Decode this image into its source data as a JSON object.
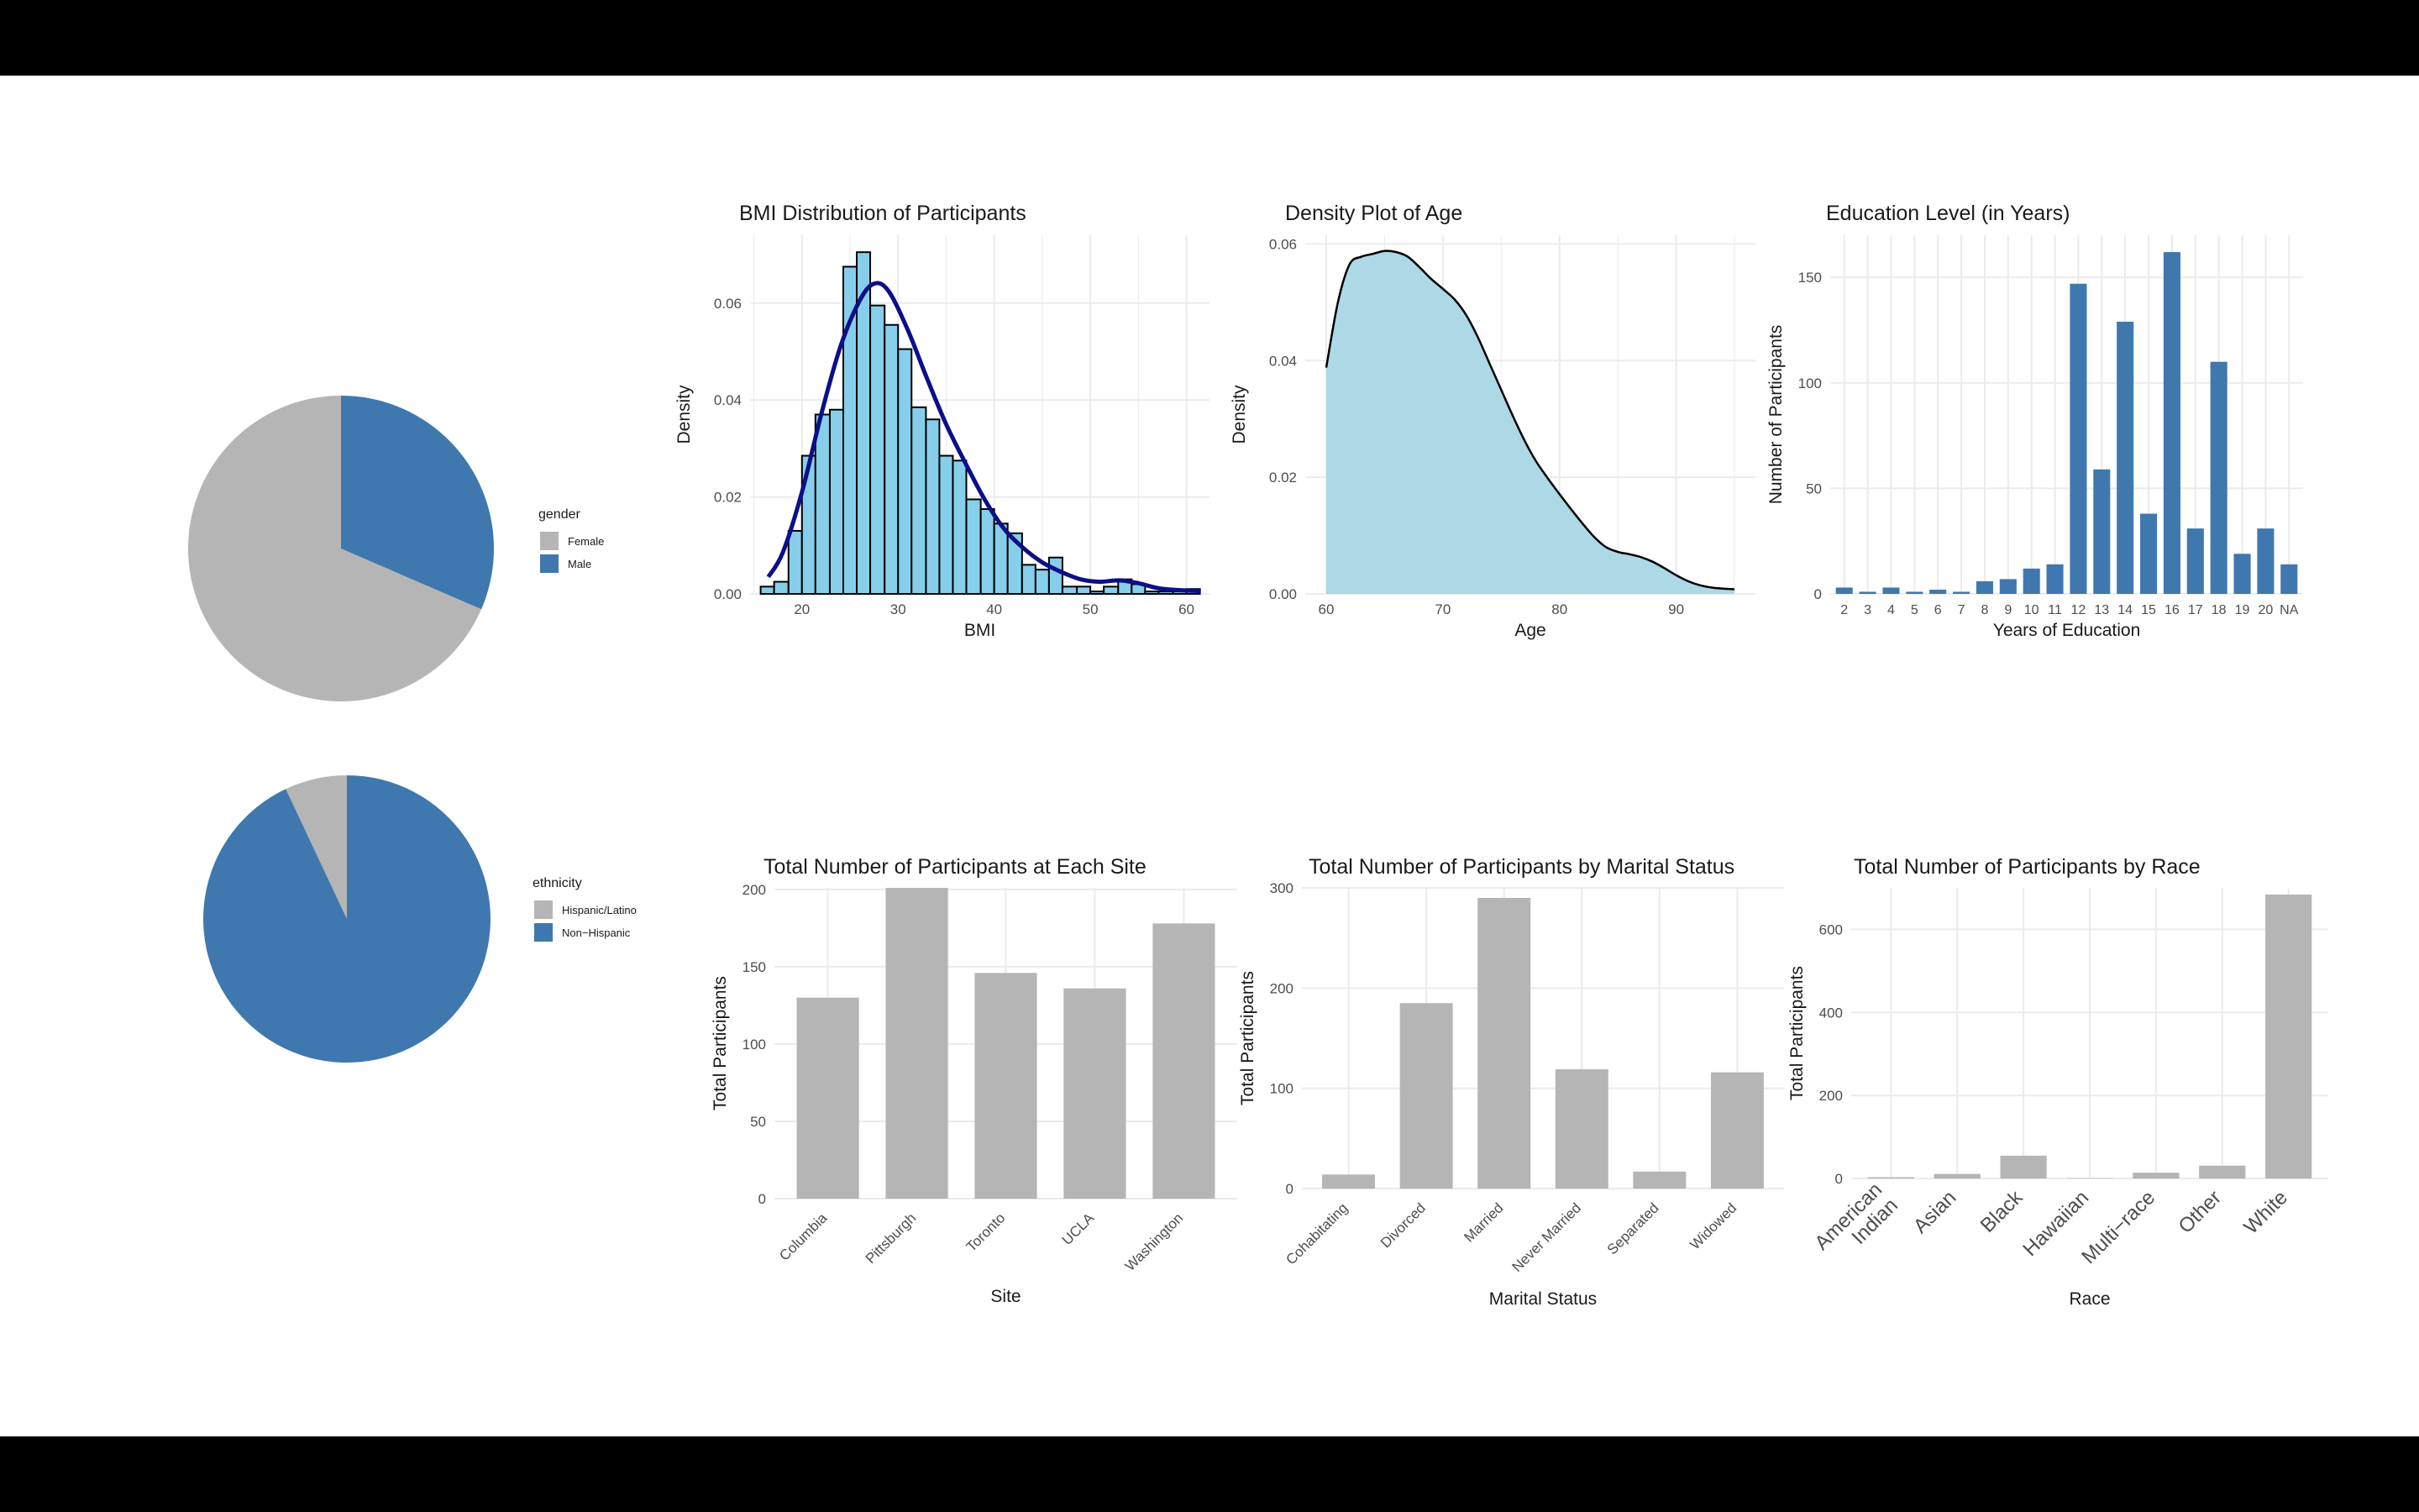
{
  "colors": {
    "grey": "#b5b5b5",
    "blue": "#3f78ae",
    "lightblue": "#87ceeb",
    "density_fill": "#add8e6",
    "navy": "#0b0f88",
    "grid": "#ebebeb",
    "text": "#1a1a1a",
    "tick": "#4d4d4d"
  },
  "chart_data": [
    {
      "id": "gender",
      "type": "pie",
      "legend_title": "gender",
      "legend_position": "right",
      "slices": [
        {
          "label": "Female",
          "value": 68.5,
          "color": "#b5b5b5"
        },
        {
          "label": "Male",
          "value": 31.5,
          "color": "#3f78ae"
        }
      ]
    },
    {
      "id": "ethnicity",
      "type": "pie",
      "legend_title": "ethnicity",
      "legend_position": "right",
      "slices": [
        {
          "label": "Hispanic/Latino",
          "value": 7,
          "color": "#b5b5b5"
        },
        {
          "label": "Non−Hispanic",
          "value": 93,
          "color": "#3f78ae"
        }
      ]
    },
    {
      "id": "bmi",
      "type": "bar",
      "subtype": "histogram",
      "title": "BMI Distribution of Participants",
      "xlabel": "BMI",
      "ylabel": "Density",
      "xlim": [
        14.6,
        62.4
      ],
      "ylim": [
        0,
        0.074
      ],
      "xticks": [
        20,
        30,
        40,
        50,
        60
      ],
      "yticks": [
        0,
        0.02,
        0.04,
        0.06
      ],
      "ytick_labels": [
        "0.00",
        "0.02",
        "0.04",
        "0.06"
      ],
      "grid": true,
      "bins": [
        {
          "x0": 15.7,
          "x1": 17.1,
          "value": 0.0015
        },
        {
          "x0": 17.1,
          "x1": 18.6,
          "value": 0.0025
        },
        {
          "x0": 18.6,
          "x1": 20.0,
          "value": 0.013
        },
        {
          "x0": 20.0,
          "x1": 21.4,
          "value": 0.0285
        },
        {
          "x0": 21.4,
          "x1": 22.9,
          "value": 0.037
        },
        {
          "x0": 22.9,
          "x1": 24.3,
          "value": 0.038
        },
        {
          "x0": 24.3,
          "x1": 25.7,
          "value": 0.0675
        },
        {
          "x0": 25.7,
          "x1": 27.1,
          "value": 0.0705
        },
        {
          "x0": 27.1,
          "x1": 28.6,
          "value": 0.0595
        },
        {
          "x0": 28.6,
          "x1": 30.0,
          "value": 0.0555
        },
        {
          "x0": 30.0,
          "x1": 31.4,
          "value": 0.0505
        },
        {
          "x0": 31.4,
          "x1": 32.9,
          "value": 0.0385
        },
        {
          "x0": 32.9,
          "x1": 34.3,
          "value": 0.036
        },
        {
          "x0": 34.3,
          "x1": 35.7,
          "value": 0.0285
        },
        {
          "x0": 35.7,
          "x1": 37.1,
          "value": 0.0275
        },
        {
          "x0": 37.1,
          "x1": 38.6,
          "value": 0.0195
        },
        {
          "x0": 38.6,
          "x1": 40.0,
          "value": 0.0175
        },
        {
          "x0": 40.0,
          "x1": 41.4,
          "value": 0.0145
        },
        {
          "x0": 41.4,
          "x1": 42.9,
          "value": 0.0125
        },
        {
          "x0": 42.9,
          "x1": 44.3,
          "value": 0.006
        },
        {
          "x0": 44.3,
          "x1": 45.7,
          "value": 0.005
        },
        {
          "x0": 45.7,
          "x1": 47.1,
          "value": 0.0075
        },
        {
          "x0": 47.1,
          "x1": 48.6,
          "value": 0.0015
        },
        {
          "x0": 48.6,
          "x1": 50.0,
          "value": 0.0015
        },
        {
          "x0": 50.0,
          "x1": 51.4,
          "value": 0.0005
        },
        {
          "x0": 51.4,
          "x1": 52.9,
          "value": 0.0015
        },
        {
          "x0": 52.9,
          "x1": 54.3,
          "value": 0.003
        },
        {
          "x0": 54.3,
          "x1": 55.7,
          "value": 0.002
        },
        {
          "x0": 55.7,
          "x1": 57.1,
          "value": 0.0005
        },
        {
          "x0": 57.1,
          "x1": 58.6,
          "value": 0.0005
        },
        {
          "x0": 58.6,
          "x1": 60.0,
          "value": 0.0005
        },
        {
          "x0": 60.0,
          "x1": 61.4,
          "value": 0.001
        }
      ],
      "density_line": {
        "x": [
          16.5,
          18,
          20,
          22,
          24,
          26,
          27.5,
          29,
          31,
          33,
          35,
          37,
          39,
          41,
          43,
          45,
          47,
          49,
          51,
          53,
          55,
          57,
          59,
          61.5
        ],
        "y": [
          0.0035,
          0.0085,
          0.021,
          0.037,
          0.051,
          0.0605,
          0.064,
          0.0625,
          0.0545,
          0.0445,
          0.035,
          0.027,
          0.0195,
          0.0135,
          0.0095,
          0.0065,
          0.0045,
          0.003,
          0.0025,
          0.0028,
          0.0022,
          0.0012,
          0.0008,
          0.0006
        ]
      }
    },
    {
      "id": "age",
      "type": "area",
      "title": "Density Plot of Age",
      "xlabel": "Age",
      "ylabel": "Density",
      "xlim": [
        58.2,
        96.8
      ],
      "ylim": [
        0,
        0.0615
      ],
      "xticks": [
        60,
        70,
        80,
        90
      ],
      "yticks": [
        0,
        0.02,
        0.04,
        0.06
      ],
      "ytick_labels": [
        "0.00",
        "0.02",
        "0.04",
        "0.06"
      ],
      "grid": true,
      "x": [
        60,
        61,
        62,
        63,
        64,
        65,
        66,
        67,
        68,
        69,
        70,
        71,
        72,
        73,
        74,
        75,
        76,
        77,
        78,
        79,
        80,
        81,
        82,
        83,
        84,
        85,
        86,
        87,
        88,
        89,
        90,
        91,
        92,
        93,
        94,
        95
      ],
      "y": [
        0.0388,
        0.05,
        0.0565,
        0.0578,
        0.0583,
        0.0588,
        0.0586,
        0.0578,
        0.056,
        0.054,
        0.0523,
        0.0505,
        0.0478,
        0.044,
        0.0395,
        0.035,
        0.0305,
        0.0263,
        0.0227,
        0.0198,
        0.0171,
        0.0145,
        0.012,
        0.0097,
        0.008,
        0.0072,
        0.0068,
        0.0063,
        0.0055,
        0.0044,
        0.0032,
        0.0022,
        0.0015,
        0.0011,
        0.0009,
        0.0008
      ]
    },
    {
      "id": "education",
      "type": "bar",
      "title": "Education Level (in Years)",
      "xlabel": "Years of Education",
      "ylabel": "Number of Participants",
      "ylim": [
        0,
        170
      ],
      "yticks": [
        0,
        50,
        100,
        150
      ],
      "grid": true,
      "color": "#3f78ae",
      "categories": [
        "2",
        "3",
        "4",
        "5",
        "6",
        "7",
        "8",
        "9",
        "10",
        "11",
        "12",
        "13",
        "14",
        "15",
        "16",
        "17",
        "18",
        "19",
        "20",
        "NA"
      ],
      "values": [
        3,
        1,
        3,
        1,
        2,
        1,
        6,
        7,
        12,
        14,
        147,
        59,
        129,
        38,
        162,
        31,
        110,
        19,
        31,
        14
      ]
    },
    {
      "id": "site",
      "type": "bar",
      "title": "Total Number of Participants at Each Site",
      "xlabel": "Site",
      "ylabel": "Total Participants",
      "ylim": [
        0,
        201
      ],
      "yticks": [
        0,
        50,
        100,
        150,
        200
      ],
      "grid": true,
      "color": "#b5b5b5",
      "rotated_labels": true,
      "categories": [
        "Columbia",
        "Pittsburgh",
        "Toronto",
        "UCLA",
        "Washington"
      ],
      "values": [
        130,
        201,
        146,
        136,
        178
      ]
    },
    {
      "id": "marital",
      "type": "bar",
      "title": "Total Number of Participants by Marital Status",
      "xlabel": "Marital Status",
      "ylabel": "Total Participants",
      "ylim": [
        0,
        300
      ],
      "yticks": [
        0,
        100,
        200,
        300
      ],
      "grid": true,
      "color": "#b5b5b5",
      "rotated_labels": true,
      "categories": [
        "Cohabitating",
        "Divorced",
        "Married",
        "Never Married",
        "Separated",
        "Widowed"
      ],
      "values": [
        14,
        185,
        290,
        119,
        17,
        116
      ]
    },
    {
      "id": "race",
      "type": "bar",
      "title": "Total Number of Participants by Race",
      "xlabel": "Race",
      "ylabel": "Total Participants",
      "ylim": [
        0,
        700
      ],
      "yticks": [
        0,
        200,
        400,
        600
      ],
      "grid": true,
      "color": "#b5b5b5",
      "rotated_labels": true,
      "categories": [
        "American\nIndian",
        "Asian",
        "Black",
        "Hawaiian",
        "Multi−race",
        "Other",
        "White"
      ],
      "values": [
        3,
        11,
        55,
        1,
        14,
        31,
        684
      ]
    }
  ]
}
